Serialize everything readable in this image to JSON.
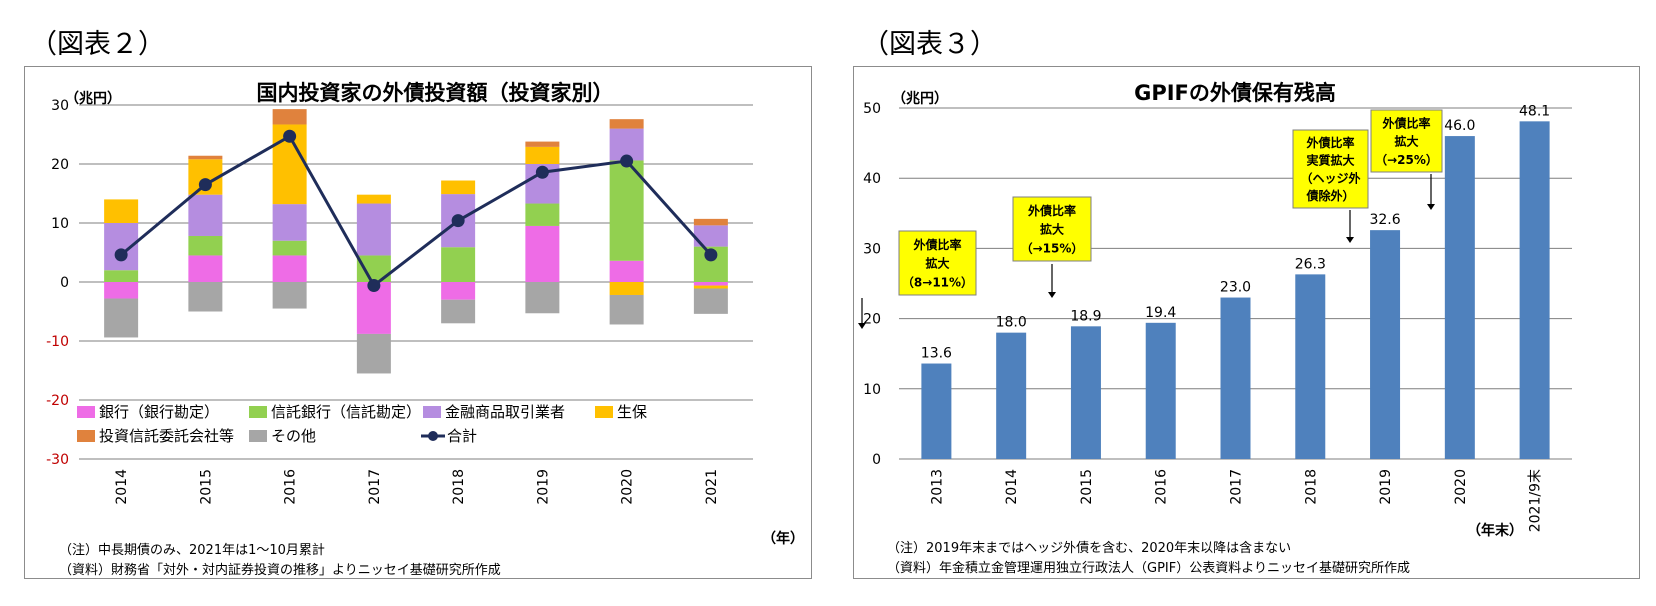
{
  "figures": {
    "left_label": "（図表２）",
    "right_label": "（図表３）"
  },
  "chart_data": [
    {
      "type": "bar",
      "stacked": true,
      "title": "国内投資家の外債投資額（投資家別）",
      "unit_label": "（兆円）",
      "x_unit": "（年）",
      "categories": [
        "2014",
        "2015",
        "2016",
        "2017",
        "2018",
        "2019",
        "2020",
        "2021"
      ],
      "ylim": [
        -30,
        30
      ],
      "yticks": [
        30,
        20,
        10,
        0,
        -10,
        -20,
        -30
      ],
      "series": [
        {
          "name": "銀行（銀行勘定）",
          "color": "#ee6ce6",
          "values": [
            -2.8,
            4.5,
            4.5,
            -8.8,
            -3.0,
            9.5,
            3.6,
            -0.6
          ]
        },
        {
          "name": "信託銀行（信託勘定）",
          "color": "#92d050",
          "values": [
            2.0,
            3.3,
            2.5,
            4.5,
            5.9,
            3.8,
            17.0,
            6.0
          ]
        },
        {
          "name": "金融商品取引業者",
          "color": "#b58de0",
          "values": [
            8.0,
            7.0,
            6.2,
            8.8,
            9.0,
            6.7,
            5.4,
            3.6
          ]
        },
        {
          "name": "生保",
          "color": "#ffc000",
          "values": [
            4.0,
            6.0,
            13.5,
            1.5,
            2.3,
            2.9,
            -2.2,
            -0.5
          ]
        },
        {
          "name": "投資信託委託会社等",
          "color": "#e0823d",
          "values": [
            0.0,
            0.6,
            2.6,
            0.0,
            0.0,
            0.9,
            1.6,
            1.1
          ]
        },
        {
          "name": "その他",
          "color": "#a6a6a6",
          "values": [
            -6.6,
            -5.0,
            -4.5,
            -6.7,
            -4.0,
            -5.3,
            -5.0,
            -4.3
          ]
        }
      ],
      "line": {
        "name": "合計",
        "color": "#1f2d5a",
        "values": [
          4.6,
          16.5,
          24.7,
          -0.6,
          10.4,
          18.6,
          20.5,
          4.6
        ]
      },
      "notes": [
        "（注）中長期債のみ、2021年は1～10月累計",
        "（資料）財務省「対外・対内証券投資の推移」よりニッセイ基礎研究所作成"
      ]
    },
    {
      "type": "bar",
      "title": "GPIFの外債保有残高",
      "unit_label": "（兆円）",
      "x_unit": "（年末）",
      "categories": [
        "2013",
        "2014",
        "2015",
        "2016",
        "2017",
        "2018",
        "2019",
        "2020",
        "2021/9末"
      ],
      "values": [
        13.6,
        18.0,
        18.9,
        19.4,
        23.0,
        26.3,
        32.6,
        46.0,
        48.1
      ],
      "value_labels": [
        "13.6",
        "18.0",
        "18.9",
        "19.4",
        "23.0",
        "26.3",
        "32.6",
        "46.0",
        "48.1"
      ],
      "bar_color": "#4f81bd",
      "ylim": [
        0,
        50
      ],
      "yticks": [
        50,
        40,
        30,
        20,
        10,
        0
      ],
      "annotations": [
        {
          "lines": [
            "外債比率",
            "拡大",
            "（8→11%）"
          ],
          "category": "2013"
        },
        {
          "lines": [
            "外債比率",
            "拡大",
            "（→15%）"
          ],
          "category": "2015"
        },
        {
          "lines": [
            "外債比率",
            "実質拡大",
            "（ヘッジ外",
            "債除外）"
          ],
          "category": "2019"
        },
        {
          "lines": [
            "外債比率",
            "拡大",
            "（→25%）"
          ],
          "category": "2020"
        }
      ],
      "notes": [
        "（注）2019年末まではヘッジ外債を含む、2020年末以降は含まない",
        "（資料）年金積立金管理運用独立行政法人（GPIF）公表資料よりニッセイ基礎研究所作成"
      ]
    }
  ]
}
